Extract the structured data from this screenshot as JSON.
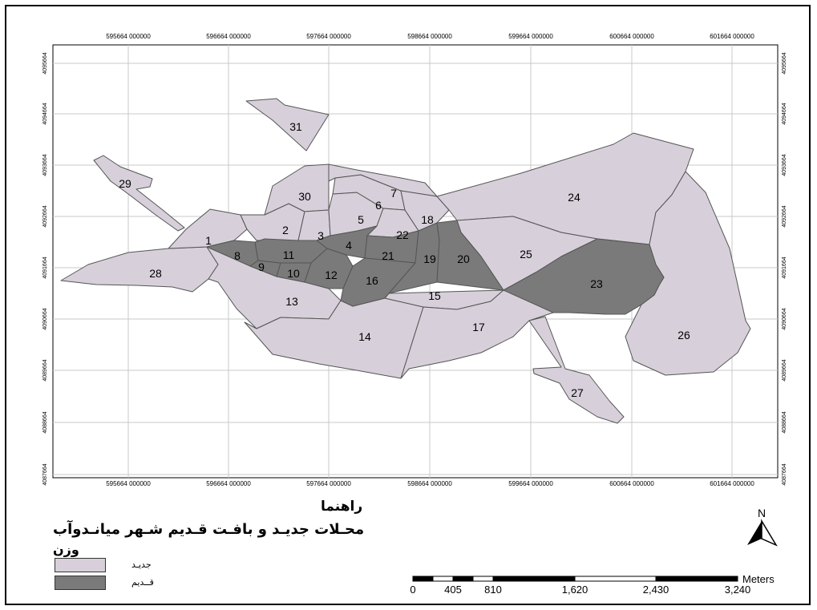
{
  "map": {
    "grid": {
      "x_ticks": [
        "595664",
        "596664",
        "597664",
        "598664",
        "599664",
        "600664",
        "601664"
      ],
      "y_ticks": [
        "4095664",
        "4094664",
        "4093664",
        "4092664",
        "4091664",
        "4090664",
        "4089664",
        "4088664",
        "4087664"
      ],
      "tick_suffix": "000000"
    },
    "neighborhoods": [
      {
        "id": "1",
        "type": "new"
      },
      {
        "id": "2",
        "type": "new"
      },
      {
        "id": "3",
        "type": "new"
      },
      {
        "id": "4",
        "type": "old"
      },
      {
        "id": "5",
        "type": "new"
      },
      {
        "id": "6",
        "type": "new"
      },
      {
        "id": "7",
        "type": "new"
      },
      {
        "id": "8",
        "type": "old"
      },
      {
        "id": "9",
        "type": "old"
      },
      {
        "id": "10",
        "type": "old"
      },
      {
        "id": "11",
        "type": "old"
      },
      {
        "id": "12",
        "type": "old"
      },
      {
        "id": "13",
        "type": "new"
      },
      {
        "id": "14",
        "type": "new"
      },
      {
        "id": "15",
        "type": "new"
      },
      {
        "id": "16",
        "type": "old"
      },
      {
        "id": "17",
        "type": "new"
      },
      {
        "id": "18",
        "type": "new"
      },
      {
        "id": "19",
        "type": "old"
      },
      {
        "id": "20",
        "type": "old"
      },
      {
        "id": "21",
        "type": "old"
      },
      {
        "id": "22",
        "type": "new"
      },
      {
        "id": "23",
        "type": "old"
      },
      {
        "id": "24",
        "type": "new"
      },
      {
        "id": "25",
        "type": "new"
      },
      {
        "id": "26",
        "type": "new"
      },
      {
        "id": "27",
        "type": "new"
      },
      {
        "id": "28",
        "type": "new"
      },
      {
        "id": "29",
        "type": "new"
      },
      {
        "id": "30",
        "type": "new"
      },
      {
        "id": "31",
        "type": "new"
      }
    ]
  },
  "legend": {
    "heading": "راهنما",
    "title": "محـلات جدیـد و بافـت قـدیم شـهر میانـدوآب",
    "subtitle": "وزن",
    "items": [
      {
        "label": "جدیـد",
        "color": "#d7d0da"
      },
      {
        "label": "قــدیم",
        "color": "#7a7a7a"
      }
    ]
  },
  "scale_bar": {
    "unit": "Meters",
    "labels": [
      "0",
      "405",
      "810",
      "1,620",
      "2,430",
      "3,240"
    ]
  },
  "north_arrow": {
    "label": "N"
  },
  "colors": {
    "new_fill": "#d7d0da",
    "old_fill": "#7a7a7a",
    "outline": "#555555",
    "grid": "#c8c8c8"
  }
}
